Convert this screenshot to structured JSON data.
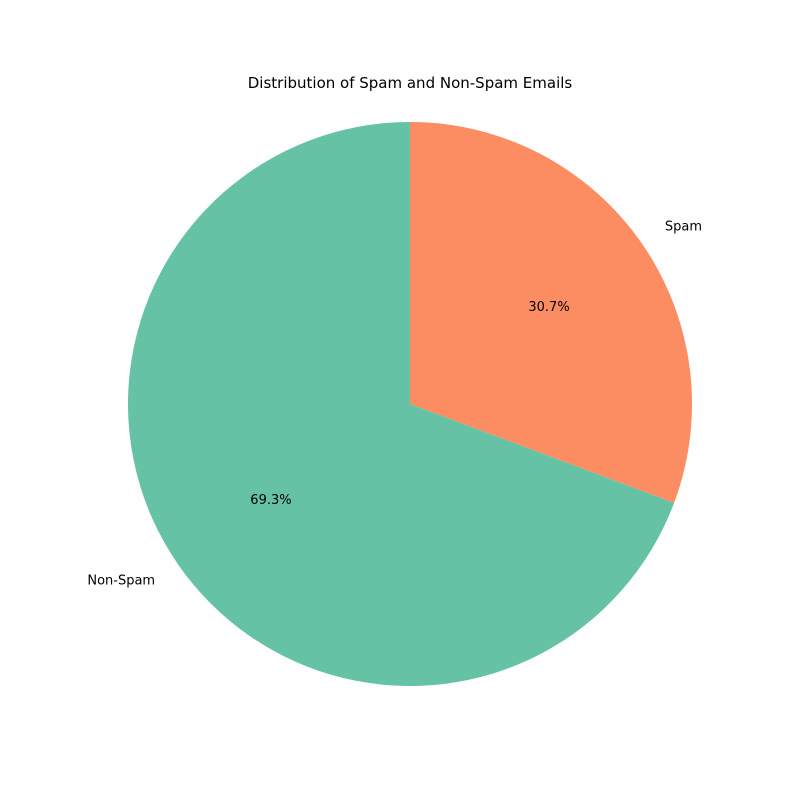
{
  "chart_data": {
    "type": "pie",
    "title": "Distribution of Spam and Non-Spam Emails",
    "slices": [
      {
        "label": "Spam",
        "value": 30.7,
        "percent_label": "30.7%",
        "color": "#fc8d62"
      },
      {
        "label": "Non-Spam",
        "value": 69.3,
        "percent_label": "69.3%",
        "color": "#66c2a5"
      }
    ],
    "start_angle_deg": 90,
    "direction": "clockwise",
    "legend": "none"
  }
}
